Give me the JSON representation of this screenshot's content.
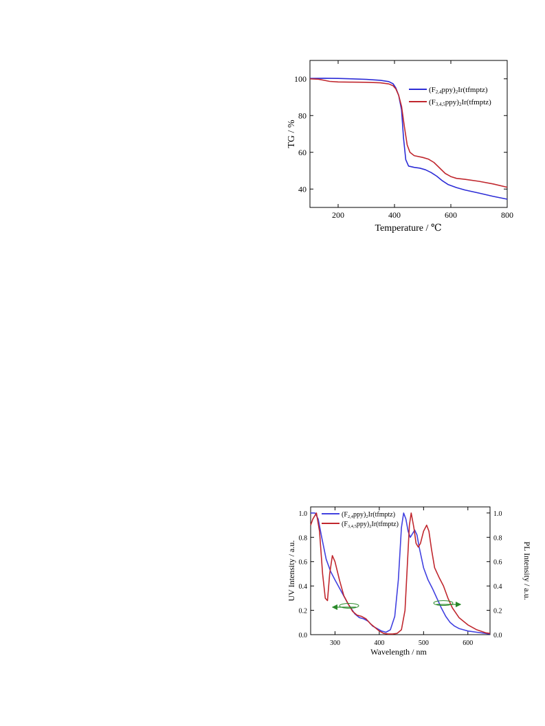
{
  "chart_data": [
    {
      "type": "line",
      "xlabel": "Temperature / ℃",
      "ylabel": "TG / %",
      "xlim": [
        100,
        800
      ],
      "ylim": [
        30,
        110
      ],
      "x_ticks": [
        200,
        400,
        600,
        800
      ],
      "y_ticks": [
        40,
        60,
        80,
        100
      ],
      "legend_position": "top-right",
      "series": [
        {
          "name": "(F2,4ppy)2Ir(tfmptz)",
          "color": "#2b2bd6",
          "x": [
            100,
            150,
            200,
            250,
            300,
            350,
            380,
            395,
            405,
            415,
            425,
            432,
            440,
            450,
            470,
            490,
            510,
            530,
            550,
            570,
            590,
            620,
            650,
            700,
            750,
            800
          ],
          "y": [
            100.2,
            100.3,
            100.2,
            100.0,
            99.7,
            99.2,
            98.5,
            97.3,
            95.0,
            91.0,
            83.0,
            68.0,
            56.0,
            52.5,
            51.8,
            51.4,
            50.5,
            49.0,
            47.0,
            44.5,
            42.5,
            40.8,
            39.5,
            37.8,
            36.0,
            34.5
          ]
        },
        {
          "name": "(F3,4,5ppy)2Ir(tfmptz)",
          "color": "#c0262d",
          "x": [
            100,
            130,
            150,
            170,
            200,
            250,
            300,
            350,
            380,
            395,
            405,
            415,
            425,
            435,
            445,
            455,
            470,
            500,
            520,
            540,
            560,
            580,
            600,
            620,
            650,
            700,
            750,
            800
          ],
          "y": [
            100.0,
            99.8,
            99.2,
            98.6,
            98.3,
            98.2,
            98.1,
            97.8,
            97.2,
            96.2,
            94.5,
            91.0,
            85.0,
            74.0,
            64.0,
            60.0,
            58.2,
            57.2,
            56.3,
            54.5,
            51.5,
            48.5,
            46.8,
            45.8,
            45.3,
            44.2,
            42.8,
            41.0
          ]
        }
      ]
    },
    {
      "type": "line",
      "xlabel": "Wavelength / nm",
      "ylabel": "UV Intensity / a.u.",
      "y2label": "PL Intensity / a.u.",
      "xlim": [
        245,
        650
      ],
      "ylim": [
        0,
        1.05
      ],
      "x_ticks": [
        300,
        400,
        500,
        600
      ],
      "y_ticks": [
        "0.0",
        "0.2",
        "0.4",
        "0.6",
        "0.8",
        "1.0"
      ],
      "legend_position": "top-left",
      "series": [
        {
          "name": "(F2,4ppy)2Ir(tfmptz)",
          "color": "#4040e0",
          "x": [
            245,
            255,
            262,
            270,
            280,
            290,
            300,
            315,
            330,
            345,
            355,
            365,
            375,
            385,
            395,
            405,
            415,
            425,
            435,
            443,
            450,
            455,
            460,
            465,
            470,
            475,
            480,
            485,
            490,
            500,
            510,
            520,
            530,
            540,
            550,
            560,
            570,
            580,
            590,
            600,
            620,
            640,
            650
          ],
          "y": [
            1.0,
            1.0,
            0.95,
            0.8,
            0.62,
            0.52,
            0.45,
            0.35,
            0.25,
            0.17,
            0.14,
            0.13,
            0.11,
            0.07,
            0.05,
            0.03,
            0.02,
            0.04,
            0.15,
            0.45,
            0.88,
            1.0,
            0.95,
            0.85,
            0.8,
            0.83,
            0.86,
            0.82,
            0.72,
            0.55,
            0.45,
            0.38,
            0.3,
            0.22,
            0.15,
            0.1,
            0.07,
            0.05,
            0.04,
            0.03,
            0.02,
            0.01,
            0.005
          ]
        },
        {
          "name": "(F3,4,5ppy)2Ir(tfmptz)",
          "color": "#c0262d",
          "x": [
            245,
            250,
            258,
            265,
            272,
            278,
            283,
            288,
            294,
            300,
            310,
            320,
            330,
            340,
            350,
            360,
            370,
            380,
            390,
            400,
            410,
            420,
            430,
            440,
            450,
            458,
            463,
            468,
            472,
            478,
            483,
            488,
            493,
            500,
            507,
            512,
            518,
            525,
            535,
            545,
            555,
            565,
            580,
            600,
            620,
            640,
            650
          ],
          "y": [
            0.9,
            0.95,
            1.0,
            0.85,
            0.5,
            0.3,
            0.28,
            0.5,
            0.65,
            0.6,
            0.45,
            0.32,
            0.25,
            0.19,
            0.16,
            0.15,
            0.13,
            0.09,
            0.06,
            0.03,
            0.01,
            0.005,
            0.005,
            0.01,
            0.04,
            0.2,
            0.55,
            0.9,
            1.0,
            0.88,
            0.75,
            0.72,
            0.75,
            0.85,
            0.9,
            0.85,
            0.7,
            0.55,
            0.47,
            0.4,
            0.3,
            0.22,
            0.14,
            0.08,
            0.04,
            0.015,
            0.01
          ]
        }
      ]
    }
  ]
}
